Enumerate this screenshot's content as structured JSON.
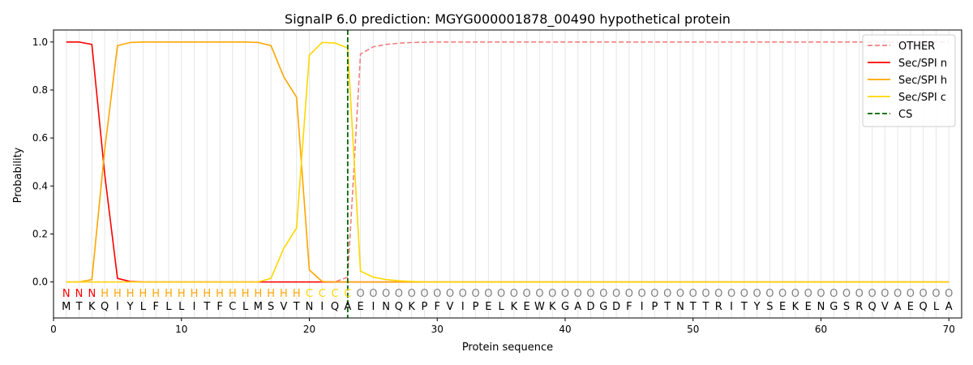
{
  "chart_data": {
    "type": "line",
    "title": "SignalP 6.0 prediction: MGYG000001878_00490 hypothetical protein",
    "xlabel": "Protein sequence",
    "ylabel": "Probability",
    "xlim": [
      0,
      71
    ],
    "ylim": [
      -0.15,
      1.05
    ],
    "x_ticks": [
      "0",
      "10",
      "20",
      "30",
      "40",
      "50",
      "60",
      "70"
    ],
    "y_ticks": [
      "0.0",
      "0.2",
      "0.4",
      "0.6",
      "0.8",
      "1.0"
    ],
    "grid": "vertical lines at each residue",
    "legend_position": "top-right",
    "sequence": [
      "M",
      "T",
      "K",
      "Q",
      "I",
      "Y",
      "L",
      "F",
      "L",
      "L",
      "I",
      "T",
      "F",
      "C",
      "L",
      "M",
      "S",
      "V",
      "T",
      "N",
      "I",
      "Q",
      "A",
      "E",
      "I",
      "N",
      "Q",
      "K",
      "P",
      "F",
      "V",
      "I",
      "P",
      "E",
      "L",
      "K",
      "E",
      "W",
      "K",
      "G",
      "A",
      "D",
      "G",
      "D",
      "F",
      "I",
      "P",
      "T",
      "N",
      "T",
      "T",
      "R",
      "I",
      "T",
      "Y",
      "S",
      "E",
      "K",
      "E",
      "N",
      "G",
      "S",
      "R",
      "Q",
      "V",
      "A",
      "E",
      "Q",
      "L",
      "A"
    ],
    "prediction": [
      "N",
      "N",
      "N",
      "H",
      "H",
      "H",
      "H",
      "H",
      "H",
      "H",
      "H",
      "H",
      "H",
      "H",
      "H",
      "H",
      "H",
      "H",
      "H",
      "C",
      "C",
      "C",
      "C",
      "O",
      "O",
      "O",
      "O",
      "O",
      "O",
      "O",
      "O",
      "O",
      "O",
      "O",
      "O",
      "O",
      "O",
      "O",
      "O",
      "O",
      "O",
      "O",
      "O",
      "O",
      "O",
      "O",
      "O",
      "O",
      "O",
      "O",
      "O",
      "O",
      "O",
      "O",
      "O",
      "O",
      "O",
      "O",
      "O",
      "O",
      "O",
      "O",
      "O",
      "O",
      "O",
      "O",
      "O",
      "O",
      "O",
      "O"
    ],
    "prediction_colors": {
      "N": "#ff0000",
      "H": "#ffa500",
      "C": "#ffd700",
      "O": "#808080"
    },
    "series": [
      {
        "name": "OTHER",
        "color": "#f08080",
        "dash": "dashed",
        "values": [
          0,
          0,
          0,
          0,
          0,
          0,
          0,
          0,
          0,
          0,
          0,
          0,
          0,
          0,
          0,
          0,
          0,
          0,
          0,
          0,
          0,
          0,
          0.02,
          0.95,
          0.98,
          0.99,
          0.995,
          0.998,
          0.999,
          1,
          1,
          1,
          1,
          1,
          1,
          1,
          1,
          1,
          1,
          1,
          1,
          1,
          1,
          1,
          1,
          1,
          1,
          1,
          1,
          1,
          1,
          1,
          1,
          1,
          1,
          1,
          1,
          1,
          1,
          1,
          1,
          1,
          1,
          1,
          1,
          1,
          1,
          1,
          1,
          1
        ]
      },
      {
        "name": "Sec/SPI n",
        "color": "#ff0000",
        "dash": "solid",
        "values": [
          1.0,
          1.0,
          0.99,
          0.45,
          0.015,
          0.002,
          0,
          0,
          0,
          0,
          0,
          0,
          0,
          0,
          0,
          0,
          0,
          0,
          0,
          0,
          0,
          0,
          0,
          0,
          0,
          0,
          0,
          0,
          0,
          0,
          0,
          0,
          0,
          0,
          0,
          0,
          0,
          0,
          0,
          0,
          0,
          0,
          0,
          0,
          0,
          0,
          0,
          0,
          0,
          0,
          0,
          0,
          0,
          0,
          0,
          0,
          0,
          0,
          0,
          0,
          0,
          0,
          0,
          0,
          0,
          0,
          0,
          0,
          0,
          0
        ]
      },
      {
        "name": "Sec/SPI h",
        "color": "#ffa500",
        "dash": "solid",
        "values": [
          0,
          0,
          0.01,
          0.55,
          0.985,
          0.998,
          1,
          1,
          1,
          1,
          1,
          1,
          1,
          1,
          1,
          0.998,
          0.985,
          0.855,
          0.77,
          0.05,
          0.002,
          0,
          0,
          0,
          0,
          0,
          0,
          0,
          0,
          0,
          0,
          0,
          0,
          0,
          0,
          0,
          0,
          0,
          0,
          0,
          0,
          0,
          0,
          0,
          0,
          0,
          0,
          0,
          0,
          0,
          0,
          0,
          0,
          0,
          0,
          0,
          0,
          0,
          0,
          0,
          0,
          0,
          0,
          0,
          0,
          0,
          0,
          0,
          0,
          0
        ]
      },
      {
        "name": "Sec/SPI c",
        "color": "#ffd700",
        "dash": "solid",
        "values": [
          0,
          0,
          0,
          0,
          0,
          0,
          0,
          0,
          0,
          0,
          0,
          0,
          0,
          0,
          0,
          0,
          0.015,
          0.14,
          0.225,
          0.945,
          0.998,
          0.996,
          0.975,
          0.045,
          0.02,
          0.01,
          0.005,
          0.002,
          0,
          0,
          0,
          0,
          0,
          0,
          0,
          0,
          0,
          0,
          0,
          0,
          0,
          0,
          0,
          0,
          0,
          0,
          0,
          0,
          0,
          0,
          0,
          0,
          0,
          0,
          0,
          0,
          0,
          0,
          0,
          0,
          0,
          0,
          0,
          0,
          0,
          0,
          0,
          0,
          0,
          0
        ]
      }
    ],
    "cs": {
      "name": "CS",
      "x": 23,
      "color": "#006400"
    }
  }
}
